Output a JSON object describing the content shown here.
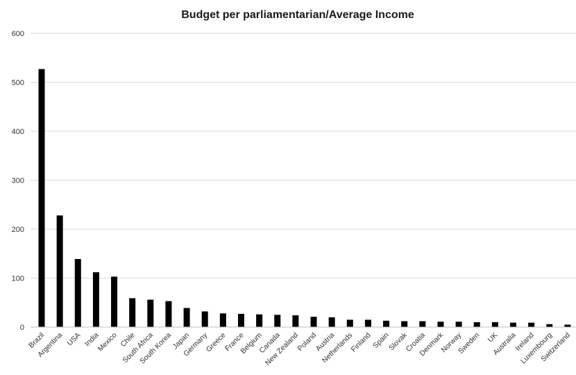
{
  "chart_data": {
    "type": "bar",
    "title": "Budget per parliamentarian/Average Income",
    "xlabel": "",
    "ylabel": "",
    "ylim": [
      0,
      600
    ],
    "yticks": [
      0,
      100,
      200,
      300,
      400,
      500,
      600
    ],
    "grid": true,
    "legend": "none",
    "bar_color": "#000000",
    "categories": [
      "Brazil",
      "Argentina",
      "USA",
      "India",
      "Mexico",
      "Chile",
      "South Africa",
      "South Korea",
      "Japan",
      "Germany",
      "Greece",
      "France",
      "Belgium",
      "Canada",
      "New Zealand",
      "Poland",
      "Austria",
      "Netherlands",
      "Finland",
      "Spain",
      "Slovak",
      "Croatia",
      "Denmark",
      "Norway",
      "Sweden",
      "UK",
      "Australia",
      "Ireland",
      "Luxembourg",
      "Switzerland"
    ],
    "values": [
      527,
      228,
      139,
      112,
      103,
      59,
      56,
      53,
      39,
      32,
      28,
      27,
      26,
      25,
      24,
      21,
      20,
      15,
      15,
      13,
      12,
      12,
      11,
      11,
      10,
      10,
      9,
      9,
      6,
      5
    ]
  }
}
